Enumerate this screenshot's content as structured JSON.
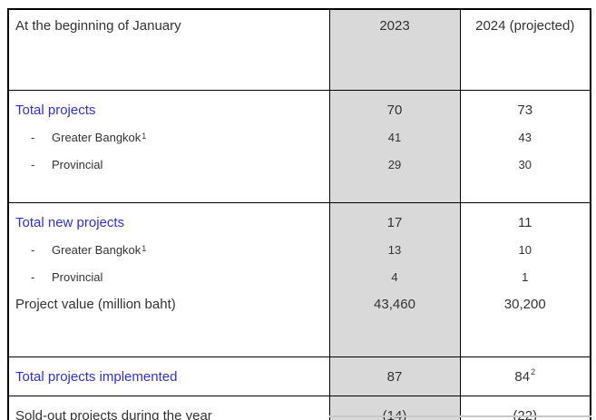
{
  "table": {
    "dash": "-",
    "header": {
      "col1": "At the beginning of January",
      "col2": "2023",
      "col3": "2024 (projected)"
    },
    "colors": {
      "highlight_column_bg": "#d9d9d9",
      "section_title_text": "#3030cf",
      "body_text": "#333333",
      "border": "#000000"
    },
    "sections": [
      {
        "rows": [
          {
            "label": "Total projects",
            "v2023": "70",
            "v2024": "73"
          },
          {
            "label": "Greater Bangkok",
            "sup": "1",
            "v2023": "41",
            "v2024": "43"
          },
          {
            "label": "Provincial",
            "v2023": "29",
            "v2024": "30"
          }
        ]
      },
      {
        "rows": [
          {
            "label": "Total new projects",
            "v2023": "17",
            "v2024": "11"
          },
          {
            "label": "Greater Bangkok",
            "sup": "1",
            "v2023": "13",
            "v2024": "10"
          },
          {
            "label": "Provincial",
            "v2023": "4",
            "v2024": "1"
          },
          {
            "label": "Project value (million baht)",
            "v2023": "43,460",
            "v2024": "30,200"
          }
        ]
      },
      {
        "rows": [
          {
            "label": "Total projects implemented",
            "v2023": "87",
            "v2024": "84",
            "v2024_sup": "2"
          }
        ]
      },
      {
        "rows": [
          {
            "label": "Sold-out projects during the year",
            "v2023": "(14)",
            "v2024": "(22)"
          }
        ]
      }
    ]
  }
}
